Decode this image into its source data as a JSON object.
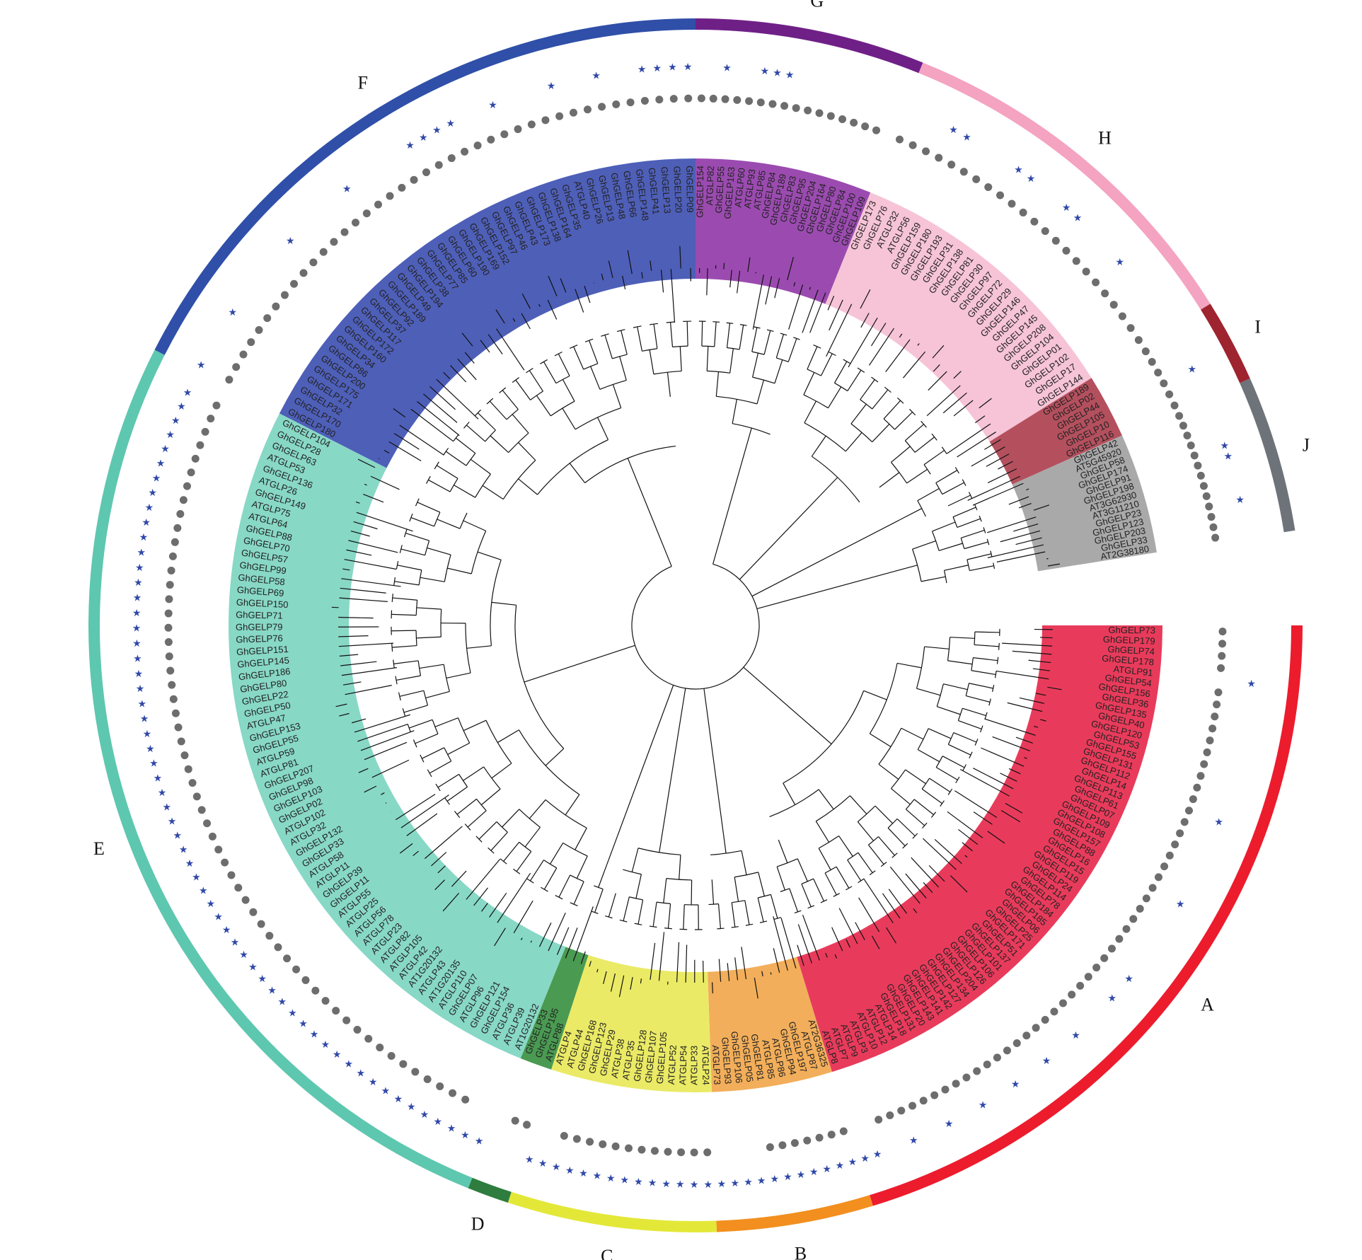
{
  "clades": [
    {
      "label": "A",
      "color": "#ec1c2d",
      "inner_color": "#e83b5b",
      "start": 90,
      "end": 163,
      "leaves": [
        "GhGELP73",
        "GhGELP179",
        "GhGELP74",
        "GhGELP178",
        "ATGLP91",
        "GhGELP54",
        "GhGELP156",
        "GhGELP36",
        "GhGELP135",
        "GhGELP40",
        "GhGELP120",
        "GhGELP53",
        "GhGELP155",
        "GhGELP131",
        "GhGELP112",
        "GhGELP14",
        "GhGELP113",
        "GhGELP61",
        "GhGELP07",
        "GhGELP109",
        "GhGELP108",
        "GhGELP157",
        "GhGELP88",
        "GhGELP16",
        "GhGELP15",
        "GhGELP119",
        "GhGELP24",
        "GhGELP114",
        "GhGELP78",
        "GhGELP184",
        "GhGELP185",
        "GhGELP06",
        "GhGELP25",
        "GhGELP171",
        "GhGELP51",
        "GhGELP137",
        "GhGELP101",
        "GhGELP106",
        "GhGELP126",
        "GhGELP204",
        "GhGELP134",
        "GhGELP127",
        "GhGELP142",
        "GhGELP141",
        "GhGELP143",
        "GhGELP20",
        "GhGELP131",
        "GhGELP18",
        "ATGLP14",
        "ATGLP12",
        "ATGLP10",
        "ATGLP3",
        "ATGLP9",
        "ATGLP7",
        "ATGLP8"
      ],
      "dots": [
        0,
        1,
        2,
        3,
        5,
        6,
        7,
        8,
        9,
        10,
        11,
        12,
        13,
        14,
        15,
        16,
        17,
        18,
        19,
        20,
        21,
        22,
        23,
        24,
        25,
        26,
        27,
        28,
        29,
        30,
        31,
        32,
        33,
        34,
        35,
        36,
        37,
        38,
        39,
        40,
        41,
        42,
        43,
        44,
        45,
        46,
        47,
        48,
        49,
        50,
        51,
        52
      ],
      "stars": [
        4,
        15,
        22,
        29,
        31,
        35,
        38,
        41,
        44,
        47,
        50,
        53,
        54
      ]
    },
    {
      "label": "B",
      "color": "#f28f1f",
      "inner_color": "#f2ae5a",
      "start": 163,
      "end": 178,
      "leaves": [
        "AT2G36325",
        "ATGLP87",
        "GhGELP197",
        "GhGELP94",
        "ATGLP86",
        "ATGLP85",
        "GhGELP81",
        "GhGELP05",
        "GhGELP106",
        "GhGELP93",
        "ATGLP73"
      ],
      "dots": [
        0,
        1,
        2,
        3,
        4,
        5,
        6
      ],
      "stars": [
        0,
        1,
        2,
        3,
        4,
        5,
        6,
        7,
        8,
        9,
        10
      ]
    },
    {
      "label": "C",
      "color": "#e3e838",
      "inner_color": "#eaea66",
      "start": 178,
      "end": 198,
      "leaves": [
        "ATGLP24",
        "ATGLP33",
        "ATGLP54",
        "ATGLP52",
        "GhGELP105",
        "GhGELP107",
        "GhGELP128",
        "ATGLP35",
        "ATGLP38",
        "GhGELP29",
        "GhGELP123",
        "GhGELP168",
        "ATGLP44",
        "ATGLP4"
      ],
      "dots": [
        0,
        1,
        2,
        3,
        4,
        5,
        6,
        7,
        8,
        9,
        10,
        11
      ],
      "stars": [
        0,
        1,
        2,
        3,
        4,
        5,
        6,
        7,
        8,
        9,
        10,
        11,
        12,
        13
      ]
    },
    {
      "label": "D",
      "color": "#2e7d3e",
      "inner_color": "#4a9a52",
      "start": 198,
      "end": 202,
      "leaves": [
        "ATGLP88",
        "GhGELP195",
        "GhGELP33"
      ],
      "dots": [
        0,
        1
      ],
      "stars": []
    },
    {
      "label": "E",
      "color": "#5ec7af",
      "inner_color": "#88d8c6",
      "start": 202,
      "end": 297,
      "leaves": [
        "AT1G20132",
        "ATGLP39",
        "ATGLP36",
        "GhGELP154",
        "GhGELP121",
        "ATGLP96",
        "GhGELP07",
        "ATGLP110",
        "AT1G20135",
        "ATGLP43",
        "AT1G20132",
        "ATGLP42",
        "ATGLP105",
        "ATGLP82",
        "ATGLP23",
        "ATGLP78",
        "ATGLP56",
        "ATGLP25",
        "ATGLP55",
        "GhGELP11",
        "GhGELP39",
        "ATGLP11",
        "ATGLP58",
        "GhGELP33",
        "GhGELP132",
        "ATGLP32",
        "ATGLP102",
        "GhGELP02",
        "GhGELP103",
        "GhGELP98",
        "GhGELP207",
        "ATGLP81",
        "ATGLP59",
        "GhGELP55",
        "GhGELP153",
        "ATGLP47",
        "GhGELP50",
        "GhGELP22",
        "GhGELP80",
        "GhGELP186",
        "GhGELP145",
        "GhGELP151",
        "GhGELP76",
        "GhGELP79",
        "GhGELP71",
        "GhGELP150",
        "GhGELP69",
        "GhGELP58",
        "GhGELP99",
        "GhGELP57",
        "GhGELP70",
        "GhGELP88",
        "ATGLP64",
        "ATGLP75",
        "GhGELP149",
        "ATGLP26",
        "GhGELP136",
        "ATGLP53",
        "GhGELP63",
        "GhGELP28",
        "GhGELP104"
      ],
      "dots": [
        2,
        3,
        4,
        5,
        6,
        7,
        8,
        9,
        10,
        11,
        12,
        13,
        14,
        15,
        16,
        17,
        18,
        19,
        20,
        21,
        22,
        23,
        24,
        25,
        26,
        27,
        28,
        29,
        30,
        31,
        32,
        33,
        34,
        35,
        36,
        37,
        38,
        39,
        40,
        41,
        42,
        43,
        44,
        45,
        46,
        47,
        48,
        49,
        50,
        51,
        52,
        53,
        54,
        55,
        56,
        57,
        58,
        59
      ],
      "stars": [
        0,
        1,
        2,
        3,
        4,
        5,
        6,
        7,
        8,
        9,
        10,
        11,
        12,
        13,
        14,
        15,
        16,
        17,
        18,
        19,
        20,
        21,
        22,
        23,
        24,
        25,
        26,
        27,
        28,
        29,
        30,
        31,
        32,
        33,
        34,
        35,
        36,
        37,
        38,
        39,
        40,
        41,
        42,
        43,
        44,
        45,
        46,
        47,
        48,
        49,
        50,
        51,
        52,
        53,
        54,
        55,
        56,
        57,
        58,
        59
      ]
    },
    {
      "label": "F",
      "color": "#2f4fa8",
      "inner_color": "#4e5fb8",
      "start": 297,
      "end": 360,
      "leaves": [
        "GhGELP180",
        "GhGELP170",
        "GhGELP32",
        "GhGELP171",
        "GhGELP175",
        "GhGELP200",
        "GhGELP86",
        "GhGELP34",
        "GhGELP160",
        "GhGELP172",
        "GhGELP117",
        "GhGELP37",
        "GhGELP92",
        "GhGELP189",
        "GhGELP49",
        "GhGELP194",
        "GhGELP38",
        "GhGELP77",
        "GhGELP85",
        "GhGELP60",
        "GhGELP190",
        "GhGELP169",
        "GhGELP152",
        "GhGELP97",
        "GhGELP46",
        "GhGELP43",
        "GhGELP173",
        "GhGELP138",
        "GhGELP164",
        "GhGELP35",
        "ATGLP40",
        "GhGELP26",
        "GhGELP13",
        "GhGELP48",
        "GhGELP66",
        "GhGELP148",
        "GhGELP41",
        "GhGELP13",
        "GhGELP20",
        "GhGELP09"
      ],
      "dots": [
        0,
        1,
        2,
        3,
        4,
        5,
        6,
        7,
        8,
        9,
        10,
        11,
        12,
        13,
        14,
        15,
        16,
        17,
        18,
        19,
        20,
        21,
        22,
        23,
        24,
        25,
        26,
        27,
        28,
        29,
        30,
        31,
        32,
        33,
        34,
        35,
        36,
        37,
        38,
        39
      ],
      "stars": [
        0,
        4,
        10,
        15,
        20,
        21,
        22,
        23,
        26,
        30,
        33,
        36,
        37,
        38,
        39
      ]
    },
    {
      "label": "G",
      "color": "#6f2087",
      "inner_color": "#9b4bb0",
      "start": 0,
      "end": 22,
      "leaves": [
        "GhGELP154",
        "ATGLP82",
        "GhGELP55",
        "GhGELP163",
        "ATGLP60",
        "ATGLP93",
        "ATGLP85",
        "GhGELP84",
        "GhGELP189",
        "GhGELP83",
        "GhGELP95",
        "GhGELP204",
        "GhGELP164",
        "GhGELP80",
        "GhGELP84",
        "GhGELP100",
        "GhGELP109"
      ],
      "dots": [
        0,
        1,
        2,
        3,
        4,
        5,
        6,
        7,
        8,
        9,
        10,
        11,
        12,
        13,
        14,
        15
      ],
      "stars": [
        2,
        5,
        6,
        7
      ]
    },
    {
      "label": "H",
      "color": "#f4a3c1",
      "inner_color": "#f6c4d6",
      "start": 22,
      "end": 58,
      "leaves": [
        "GhGELP173",
        "GhGELP76",
        "ATGLP32",
        "ATGLP56",
        "GhGELP159",
        "GhGELP180",
        "GhGELP193",
        "GhGELP31",
        "GhGELP138",
        "GhGELP81",
        "GhGELP30",
        "GhGELP97",
        "GhGELP72",
        "GhGELP29",
        "GhGELP146",
        "GhGELP47",
        "GhGELP145",
        "GhGELP208",
        "GhGELP104",
        "GhGELP01",
        "GhGELP102",
        "GhGELP17",
        "GhGELP144"
      ],
      "dots": [
        0,
        1,
        2,
        3,
        4,
        5,
        6,
        7,
        8,
        9,
        10,
        11,
        12,
        13,
        14,
        15,
        16,
        17,
        18,
        19,
        20,
        21,
        22
      ],
      "stars": [
        3,
        4,
        8,
        9,
        12,
        13,
        17
      ]
    },
    {
      "label": "I",
      "color": "#9e242f",
      "inner_color": "#b4505e",
      "start": 58,
      "end": 66,
      "leaves": [
        "GhGELP189",
        "GhGELP02",
        "GhGELP44",
        "GhGELP105",
        "GhGELP10",
        "GhGELP116"
      ],
      "dots": [
        0,
        1,
        2,
        3,
        4,
        5
      ],
      "stars": [
        3
      ]
    },
    {
      "label": "J",
      "color": "#6e737a",
      "inner_color": "#a9a9a9",
      "start": 66,
      "end": 81,
      "leaves": [
        "GhGELP42",
        "AT5G45920",
        "GhGELP58",
        "GhGELP174",
        "GhGELP91",
        "GhGELP198",
        "AT3G62930",
        "AT3G11210",
        "GhGELP23",
        "GhGELP123",
        "GhGELP203",
        "GhGELP33",
        "AT2G38180"
      ],
      "dots": [
        0,
        1,
        2,
        3,
        4,
        5,
        6,
        7,
        8,
        9,
        10,
        11,
        12
      ],
      "stars": [
        4,
        5,
        9
      ]
    }
  ],
  "colors": {
    "dot": "#6d6d6d",
    "star": "#2f48a8",
    "branch": "#111111"
  }
}
